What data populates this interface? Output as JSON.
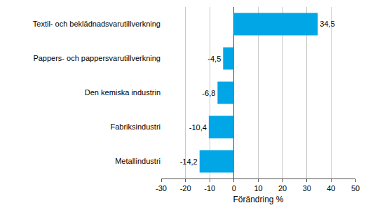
{
  "chart_data": {
    "type": "bar",
    "orientation": "horizontal",
    "categories": [
      "Textil- och beklädnadsvarutillverkning",
      "Pappers- och pappersvarutillverkning",
      "Den kemiska industrin",
      "Fabriksindustri",
      "Metallindustri"
    ],
    "values": [
      34.5,
      -4.5,
      -6.8,
      -10.4,
      -14.2
    ],
    "value_labels": [
      "34,5",
      "-4,5",
      "-6,8",
      "-10,4",
      "-14,2"
    ],
    "data_labels": true,
    "color": "#00a6e6",
    "xlabel": "Förändring %",
    "xlim": [
      -30,
      50
    ],
    "xticks": [
      -30,
      -20,
      -10,
      0,
      10,
      20,
      30,
      40,
      50
    ],
    "grid": true
  }
}
